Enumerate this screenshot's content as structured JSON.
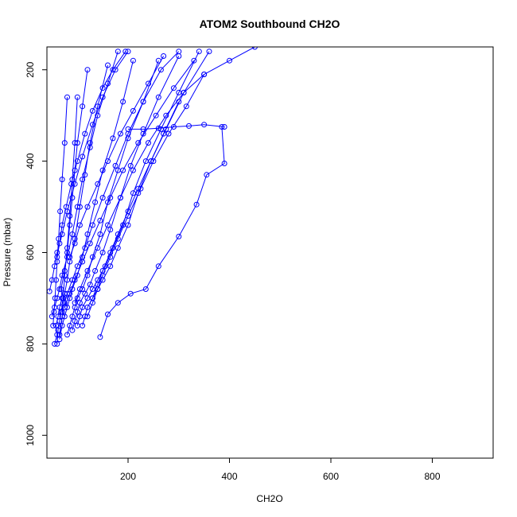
{
  "chart_data": {
    "type": "line",
    "title": "ATOM2 Southbound CH2O",
    "xlabel": "CH2O",
    "ylabel": "Pressure (mbar)",
    "xlim": [
      40,
      920
    ],
    "ylim": [
      1050,
      150
    ],
    "y_reversed": true,
    "x_ticks": [
      200,
      400,
      600,
      800
    ],
    "y_ticks": [
      200,
      400,
      600,
      800,
      1000
    ],
    "grid": false,
    "legend": "none",
    "color": "#0000ff",
    "marker": "open-circle",
    "series": [
      {
        "x": [
          55,
          60,
          58,
          62,
          65,
          70,
          68,
          75,
          80,
          85,
          90,
          95,
          100,
          110,
          120
        ],
        "y": [
          800,
          780,
          760,
          740,
          720,
          700,
          680,
          640,
          600,
          540,
          480,
          420,
          360,
          280,
          200
        ]
      },
      {
        "x": [
          60,
          62,
          65,
          68,
          72,
          75,
          80,
          85,
          95,
          105,
          115,
          125,
          140,
          160
        ],
        "y": [
          800,
          770,
          750,
          730,
          710,
          690,
          660,
          620,
          570,
          500,
          430,
          360,
          280,
          190
        ]
      },
      {
        "x": [
          65,
          70,
          75,
          80,
          85,
          90,
          100,
          110,
          120,
          135,
          150,
          170,
          190,
          210
        ],
        "y": [
          790,
          760,
          740,
          720,
          700,
          680,
          650,
          610,
          560,
          490,
          420,
          350,
          270,
          180
        ]
      },
      {
        "x": [
          80,
          85,
          90,
          95,
          100,
          110,
          120,
          130,
          145,
          160,
          180,
          200,
          230,
          260
        ],
        "y": [
          780,
          760,
          740,
          720,
          700,
          680,
          650,
          610,
          560,
          490,
          420,
          350,
          270,
          180
        ]
      },
      {
        "x": [
          90,
          95,
          100,
          105,
          115,
          125,
          135,
          150,
          165,
          185,
          205,
          230,
          260,
          300
        ],
        "y": [
          770,
          750,
          730,
          710,
          690,
          670,
          640,
          600,
          550,
          480,
          410,
          340,
          260,
          170
        ]
      },
      {
        "x": [
          100,
          105,
          110,
          120,
          130,
          140,
          155,
          170,
          190,
          210,
          235,
          265,
          300,
          340
        ],
        "y": [
          760,
          740,
          720,
          700,
          680,
          660,
          630,
          590,
          540,
          470,
          400,
          330,
          250,
          160
        ]
      },
      {
        "x": [
          110,
          115,
          120,
          130,
          140,
          150,
          165,
          180,
          200,
          220,
          245,
          275,
          310,
          360
        ],
        "y": [
          760,
          740,
          720,
          700,
          680,
          660,
          630,
          590,
          540,
          470,
          400,
          330,
          250,
          160
        ]
      },
      {
        "x": [
          145,
          160,
          180,
          205,
          235,
          260,
          300,
          335,
          355,
          390,
          385
        ],
        "y": [
          785,
          735,
          710,
          690,
          680,
          630,
          565,
          495,
          430,
          405,
          325
        ]
      },
      {
        "x": [
          120,
          130,
          140,
          150,
          165,
          180,
          200,
          225,
          250,
          280,
          315,
          350
        ],
        "y": [
          740,
          710,
          680,
          650,
          610,
          570,
          520,
          460,
          400,
          340,
          280,
          210
        ]
      },
      {
        "x": [
          50,
          55,
          60,
          65,
          70,
          80,
          90,
          100,
          110,
          125,
          140,
          160,
          180
        ],
        "y": [
          740,
          720,
          700,
          680,
          650,
          610,
          560,
          500,
          440,
          370,
          300,
          230,
          160
        ]
      },
      {
        "x": [
          70,
          75,
          80,
          90,
          100,
          115,
          130,
          150,
          175,
          200,
          230,
          265,
          300
        ],
        "y": [
          730,
          710,
          690,
          660,
          630,
          590,
          540,
          480,
          410,
          340,
          270,
          200,
          160
        ]
      },
      {
        "x": [
          45,
          50,
          55,
          60,
          70,
          80,
          95,
          110,
          130,
          150,
          175,
          200
        ],
        "y": [
          685,
          660,
          630,
          600,
          560,
          510,
          450,
          390,
          320,
          260,
          200,
          160
        ]
      },
      {
        "x": [
          75,
          85,
          95,
          110,
          125,
          145,
          165,
          190,
          220,
          255,
          290,
          330
        ],
        "y": [
          720,
          690,
          660,
          620,
          580,
          530,
          480,
          420,
          360,
          300,
          240,
          180
        ]
      },
      {
        "x": [
          130,
          140,
          150,
          165,
          180,
          200,
          220,
          245,
          270,
          300
        ],
        "y": [
          700,
          670,
          640,
          600,
          560,
          510,
          460,
          400,
          340,
          270
        ]
      },
      {
        "x": [
          200,
          230,
          260,
          290,
          320,
          350,
          390
        ],
        "y": [
          330,
          330,
          328,
          325,
          323,
          320,
          325
        ]
      },
      {
        "x": [
          95,
          105,
          120,
          140,
          160,
          185,
          210,
          240,
          275,
          310,
          350,
          400,
          450
        ],
        "y": [
          710,
          680,
          640,
          590,
          540,
          480,
          420,
          360,
          300,
          250,
          210,
          180,
          150
        ]
      },
      {
        "x": [
          60,
          65,
          70,
          78,
          88,
          100,
          115,
          130,
          150,
          170,
          195
        ],
        "y": [
          610,
          580,
          540,
          500,
          450,
          400,
          340,
          290,
          240,
          200,
          160
        ]
      },
      {
        "x": [
          85,
          95,
          105,
          120,
          140,
          160,
          185,
          210,
          240,
          270
        ],
        "y": [
          610,
          580,
          540,
          500,
          450,
          400,
          340,
          290,
          230,
          170
        ]
      },
      {
        "x": [
          65,
          70,
          72,
          75,
          80,
          85,
          90,
          95,
          100
        ],
        "y": [
          780,
          740,
          700,
          650,
          590,
          520,
          440,
          360,
          260
        ]
      },
      {
        "x": [
          52,
          54,
          56,
          58,
          60,
          63,
          66,
          70,
          75,
          80
        ],
        "y": [
          760,
          730,
          700,
          660,
          620,
          570,
          510,
          440,
          360,
          260
        ]
      }
    ]
  }
}
